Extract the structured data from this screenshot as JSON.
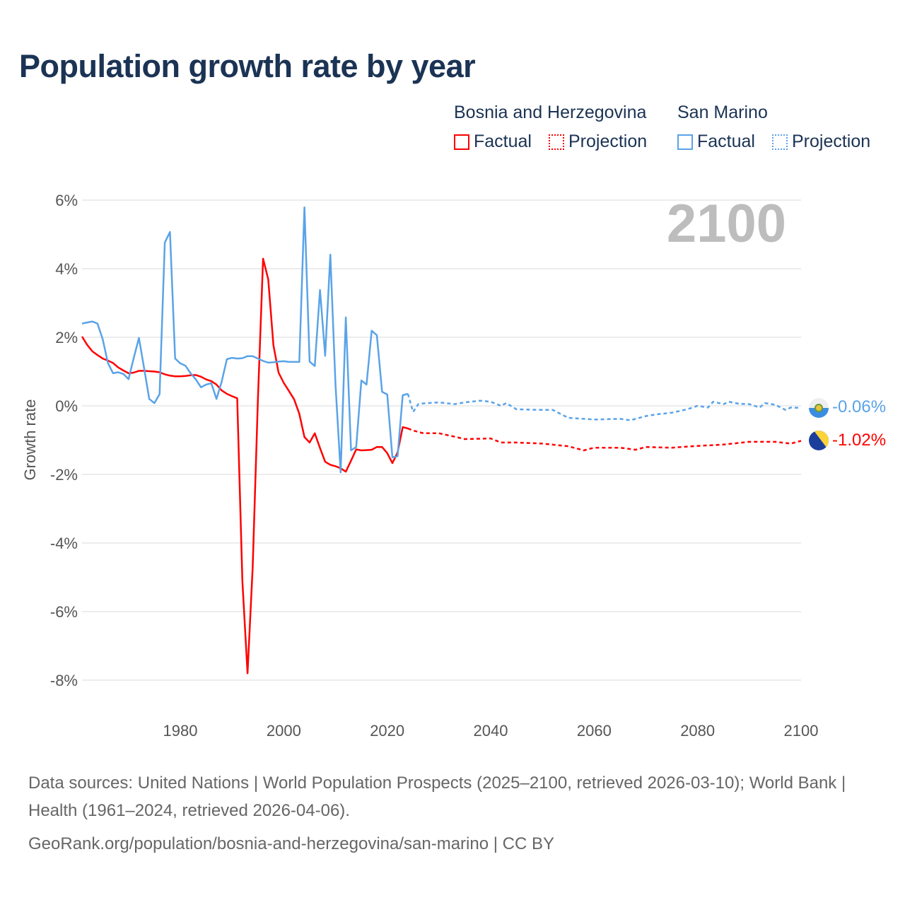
{
  "title": "Population growth rate by year",
  "legend": {
    "countries": [
      {
        "name": "Bosnia and Herzegovina",
        "factual": "Factual",
        "projection": "Projection",
        "color": "#ff0000"
      },
      {
        "name": "San Marino",
        "factual": "Factual",
        "projection": "Projection",
        "color": "#5aa3e8"
      }
    ]
  },
  "year_display": "2100",
  "end_labels": {
    "san_marino": "-0.06%",
    "bosnia": "-1.02%"
  },
  "footer": {
    "sources": "Data sources: United Nations | World Population Prospects (2025–2100, retrieved 2026-03-10); World Bank | Health (1961–2024, retrieved 2026-04-06).",
    "credit": "GeoRank.org/population/bosnia-and-herzegovina/san-marino | CC BY"
  },
  "chart_data": {
    "type": "line",
    "title": "Population growth rate by year",
    "xlabel": "",
    "ylabel": "Growth rate",
    "xlim": [
      1961,
      2100
    ],
    "ylim": [
      -8.5,
      6.3
    ],
    "x_ticks": [
      1980,
      2000,
      2020,
      2040,
      2060,
      2080,
      2100
    ],
    "x_tick_labels": [
      "1980",
      "2000",
      "2020",
      "2040",
      "2060",
      "2080",
      "2100"
    ],
    "y_ticks": [
      6,
      4,
      2,
      0,
      -2,
      -4,
      -6,
      -8
    ],
    "y_tick_labels": [
      "6%",
      "4%",
      "2%",
      "0%",
      "-2%",
      "-4%",
      "-6%",
      "-8%"
    ],
    "grid": true,
    "legend_position": "top-right",
    "series": [
      {
        "name": "Bosnia and Herzegovina",
        "kind": "Factual",
        "color": "#ff0000",
        "x": [
          1961,
          1962,
          1963,
          1964,
          1965,
          1966,
          1967,
          1968,
          1969,
          1970,
          1971,
          1972,
          1973,
          1974,
          1975,
          1976,
          1977,
          1978,
          1979,
          1980,
          1981,
          1982,
          1983,
          1984,
          1985,
          1986,
          1987,
          1988,
          1989,
          1990,
          1991,
          1992,
          1993,
          1994,
          1995,
          1996,
          1997,
          1998,
          1999,
          2000,
          2001,
          2002,
          2003,
          2004,
          2005,
          2006,
          2007,
          2008,
          2009,
          2010,
          2011,
          2012,
          2013,
          2014,
          2015,
          2016,
          2017,
          2018,
          2019,
          2020,
          2021,
          2022,
          2023,
          2024
        ],
        "y": [
          2.02,
          1.78,
          1.59,
          1.48,
          1.38,
          1.32,
          1.25,
          1.12,
          1.03,
          0.95,
          0.97,
          1.02,
          1.02,
          1.01,
          1.0,
          0.98,
          0.92,
          0.88,
          0.86,
          0.86,
          0.87,
          0.89,
          0.9,
          0.85,
          0.77,
          0.72,
          0.62,
          0.45,
          0.35,
          0.28,
          0.22,
          -5.1,
          -7.8,
          -4.7,
          0.2,
          4.29,
          3.69,
          1.77,
          0.97,
          0.67,
          0.43,
          0.19,
          -0.23,
          -0.91,
          -1.07,
          -0.8,
          -1.23,
          -1.63,
          -1.72,
          -1.76,
          -1.82,
          -1.92,
          -1.6,
          -1.27,
          -1.3,
          -1.29,
          -1.28,
          -1.2,
          -1.2,
          -1.38,
          -1.67,
          -1.36,
          -0.62,
          -0.66
        ]
      },
      {
        "name": "Bosnia and Herzegovina",
        "kind": "Projection",
        "color": "#ff0000",
        "x": [
          2024,
          2025,
          2027,
          2030,
          2033,
          2035,
          2040,
          2042,
          2045,
          2050,
          2055,
          2058,
          2060,
          2065,
          2068,
          2070,
          2075,
          2080,
          2085,
          2090,
          2095,
          2098,
          2100
        ],
        "y": [
          -0.66,
          -0.72,
          -0.8,
          -0.8,
          -0.9,
          -0.97,
          -0.95,
          -1.07,
          -1.07,
          -1.1,
          -1.18,
          -1.3,
          -1.22,
          -1.22,
          -1.28,
          -1.2,
          -1.22,
          -1.17,
          -1.13,
          -1.05,
          -1.05,
          -1.1,
          -1.02
        ]
      },
      {
        "name": "San Marino",
        "kind": "Factual",
        "color": "#5aa3e8",
        "x": [
          1961,
          1962,
          1963,
          1964,
          1965,
          1966,
          1967,
          1968,
          1969,
          1970,
          1971,
          1972,
          1973,
          1974,
          1975,
          1976,
          1977,
          1978,
          1979,
          1980,
          1981,
          1982,
          1983,
          1984,
          1985,
          1986,
          1987,
          1988,
          1989,
          1990,
          1991,
          1992,
          1993,
          1994,
          1995,
          1996,
          1997,
          1998,
          1999,
          2000,
          2001,
          2002,
          2003,
          2004,
          2005,
          2006,
          2007,
          2008,
          2009,
          2010,
          2011,
          2012,
          2013,
          2014,
          2015,
          2016,
          2017,
          2018,
          2019,
          2020,
          2021,
          2022,
          2023,
          2024
        ],
        "y": [
          2.4,
          2.43,
          2.46,
          2.4,
          1.94,
          1.25,
          0.95,
          0.98,
          0.93,
          0.78,
          1.4,
          1.98,
          1.1,
          0.2,
          0.08,
          0.34,
          4.76,
          5.07,
          1.38,
          1.24,
          1.17,
          0.95,
          0.77,
          0.54,
          0.62,
          0.66,
          0.2,
          0.7,
          1.36,
          1.4,
          1.38,
          1.39,
          1.45,
          1.45,
          1.38,
          1.31,
          1.26,
          1.27,
          1.29,
          1.3,
          1.28,
          1.28,
          1.28,
          5.79,
          1.29,
          1.16,
          3.38,
          1.46,
          4.41,
          0.62,
          -1.94,
          2.58,
          -1.3,
          -1.2,
          0.74,
          0.62,
          2.19,
          2.06,
          0.41,
          0.33,
          -1.5,
          -1.47,
          0.31,
          0.35
        ]
      },
      {
        "name": "San Marino",
        "kind": "Projection",
        "color": "#5aa3e8",
        "x": [
          2024,
          2025,
          2026,
          2027,
          2030,
          2033,
          2035,
          2038,
          2040,
          2042,
          2043,
          2045,
          2050,
          2052,
          2055,
          2058,
          2060,
          2065,
          2067,
          2070,
          2072,
          2075,
          2078,
          2080,
          2082,
          2083,
          2085,
          2086,
          2088,
          2090,
          2092,
          2093,
          2095,
          2097,
          2098,
          2100
        ],
        "y": [
          0.35,
          -0.18,
          0.05,
          0.07,
          0.1,
          0.05,
          0.1,
          0.15,
          0.12,
          0.0,
          0.08,
          -0.1,
          -0.12,
          -0.12,
          -0.35,
          -0.38,
          -0.4,
          -0.38,
          -0.42,
          -0.3,
          -0.25,
          -0.2,
          -0.1,
          0.0,
          -0.05,
          0.12,
          0.05,
          0.12,
          0.06,
          0.05,
          -0.05,
          0.08,
          0.03,
          -0.12,
          -0.05,
          -0.06
        ]
      }
    ]
  }
}
